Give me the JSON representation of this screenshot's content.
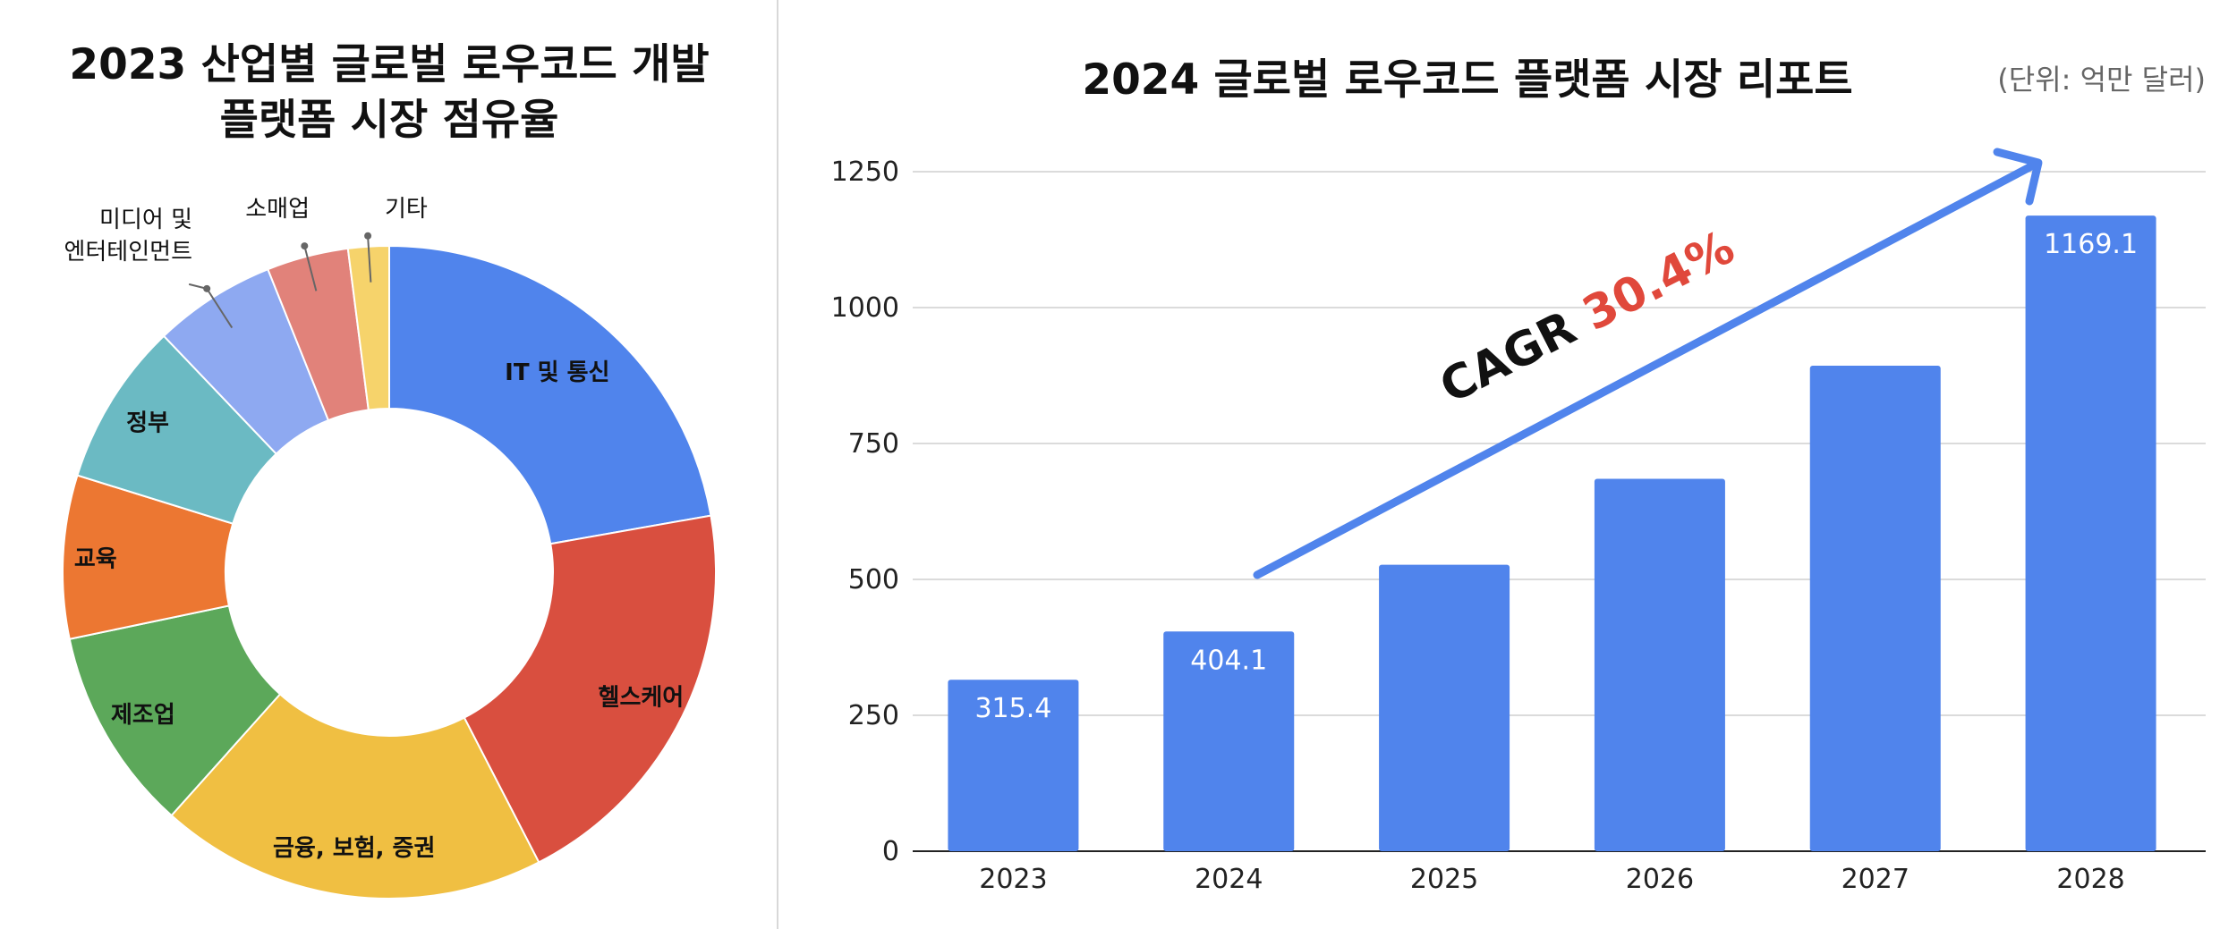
{
  "chart_data": [
    {
      "type": "pie",
      "title": "2023 산업별 글로벌 로우코드 개발 플랫폼 시장 점유율",
      "title_lines": [
        "2023 산업별 글로벌 로우코드 개발",
        "플랫폼 시장 점유율"
      ],
      "donut": true,
      "legend": "none",
      "slices": [
        {
          "label": "IT 및 통신",
          "value": 22,
          "color": "#5084ec"
        },
        {
          "label": "헬스케어",
          "value": 20,
          "color": "#d94f3f"
        },
        {
          "label": "금융, 보험, 증권",
          "value": 19,
          "color": "#f0bf42"
        },
        {
          "label": "제조업",
          "value": 10,
          "color": "#5ca85a"
        },
        {
          "label": "교육",
          "value": 8,
          "color": "#ec7732"
        },
        {
          "label": "정부",
          "value": 8,
          "color": "#6bbac3"
        },
        {
          "label": "미디어 및 엔터테인먼트",
          "label_lines": [
            "미디어 및",
            "엔터테인먼트"
          ],
          "value": 6,
          "color": "#8ea9f1"
        },
        {
          "label": "소매업",
          "value": 4,
          "color": "#e1827a"
        },
        {
          "label": "기타",
          "value": 2,
          "color": "#f6d36b"
        }
      ]
    },
    {
      "type": "bar",
      "title": "2024 글로벌 로우코드 플랫폼 시장 리포트",
      "unit_note": "(단위: 억만 달러)",
      "categories": [
        "2023",
        "2024",
        "2025",
        "2026",
        "2027",
        "2028"
      ],
      "values": [
        315.4,
        404.1,
        527,
        685,
        893,
        1169.1
      ],
      "data_labels": [
        "315.4",
        "404.1",
        "",
        "",
        "",
        "1169.1"
      ],
      "ylim": [
        0,
        1250
      ],
      "yticks": [
        0,
        250,
        500,
        750,
        1000,
        1250
      ],
      "grid": true,
      "bar_color": "#5084ec",
      "annotation": {
        "prefix": "CAGR ",
        "value": "30.4%",
        "value_color": "#e0483b",
        "arrow_color": "#5084ec"
      }
    }
  ]
}
